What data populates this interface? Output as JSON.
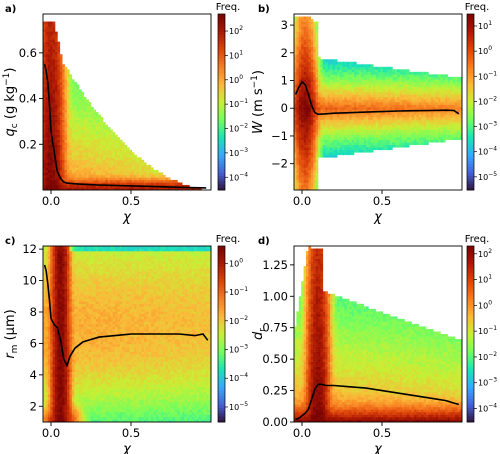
{
  "chart_data": [
    {
      "panel": "a)",
      "type": "heatmap",
      "xlabel": "χ",
      "ylabel": "q_c (g kg⁻¹)",
      "ylabel_parts": {
        "sym": "q",
        "sub": "c",
        "unit": "(g kg",
        "exp": "−1",
        "close": ")"
      },
      "xlim": [
        -0.05,
        1.0
      ],
      "ylim": [
        0.0,
        0.77
      ],
      "xticks": [
        0.0,
        0.5
      ],
      "xtick_labels": [
        "0.0",
        "0.5"
      ],
      "yticks": [
        0.2,
        0.4,
        0.6
      ],
      "ytick_labels": [
        "0.2",
        "0.4",
        "0.6"
      ],
      "colorbar_title": "Freq.",
      "colorbar_scale": "log",
      "colorbar_range": [
        3e-05,
        500
      ],
      "colorbar_ticks": [
        {
          "m": "10",
          "e": "2"
        },
        {
          "m": "10",
          "e": "1"
        },
        {
          "m": "10",
          "e": "0"
        },
        {
          "m": "10",
          "e": "−1"
        },
        {
          "m": "10",
          "e": "−2"
        },
        {
          "m": "10",
          "e": "−3"
        },
        {
          "m": "10",
          "e": "−4"
        }
      ],
      "colorbar_tick_values": [
        2,
        1,
        0,
        -1,
        -2,
        -3,
        -4
      ],
      "mean_curve": {
        "x": [
          -0.04,
          -0.03,
          -0.02,
          -0.01,
          0.0,
          0.01,
          0.02,
          0.03,
          0.04,
          0.06,
          0.08,
          0.1,
          0.15,
          0.2,
          0.3,
          0.4,
          0.5,
          0.6,
          0.7,
          0.8,
          0.9,
          0.97
        ],
        "y": [
          0.55,
          0.52,
          0.47,
          0.38,
          0.26,
          0.21,
          0.17,
          0.12,
          0.08,
          0.05,
          0.035,
          0.03,
          0.027,
          0.025,
          0.022,
          0.02,
          0.018,
          0.016,
          0.014,
          0.012,
          0.01,
          0.009
        ]
      }
    },
    {
      "panel": "b)",
      "type": "heatmap",
      "xlabel": "χ",
      "ylabel": "W (m s⁻¹)",
      "ylabel_parts": {
        "sym": "W",
        "sub": "",
        "unit": "(m s",
        "exp": "−1",
        "close": ")"
      },
      "xlim": [
        -0.05,
        1.0
      ],
      "ylim": [
        -2.95,
        3.4
      ],
      "xticks": [
        0.0,
        0.5
      ],
      "xtick_labels": [
        "0.0",
        "0.5"
      ],
      "yticks": [
        -2,
        -1,
        0,
        1,
        2,
        3
      ],
      "ytick_labels": [
        "−2",
        "−1",
        "0",
        "1",
        "2",
        "3"
      ],
      "colorbar_title": "Freq.",
      "colorbar_scale": "log",
      "colorbar_range": [
        3e-06,
        30
      ],
      "colorbar_ticks": [
        {
          "m": "10",
          "e": "1"
        },
        {
          "m": "10",
          "e": "0"
        },
        {
          "m": "10",
          "e": "−1"
        },
        {
          "m": "10",
          "e": "−2"
        },
        {
          "m": "10",
          "e": "−3"
        },
        {
          "m": "10",
          "e": "−4"
        },
        {
          "m": "10",
          "e": "−5"
        }
      ],
      "colorbar_tick_values": [
        1,
        0,
        -1,
        -2,
        -3,
        -4,
        -5
      ],
      "mean_curve": {
        "x": [
          -0.04,
          -0.02,
          0.0,
          0.02,
          0.04,
          0.06,
          0.08,
          0.1,
          0.15,
          0.2,
          0.3,
          0.4,
          0.5,
          0.6,
          0.7,
          0.8,
          0.9,
          0.95,
          0.98
        ],
        "y": [
          0.5,
          0.75,
          0.95,
          0.85,
          0.5,
          0.1,
          -0.15,
          -0.22,
          -0.2,
          -0.18,
          -0.16,
          -0.14,
          -0.12,
          -0.1,
          -0.09,
          -0.08,
          -0.07,
          -0.08,
          -0.2
        ]
      }
    },
    {
      "panel": "c)",
      "type": "heatmap",
      "xlabel": "χ",
      "ylabel": "r_m (µm)",
      "ylabel_parts": {
        "sym": "r",
        "sub": "m",
        "unit": "(µm)",
        "exp": "",
        "close": ""
      },
      "xlim": [
        -0.05,
        1.0
      ],
      "ylim": [
        1.0,
        12.2
      ],
      "xticks": [
        0.0,
        0.5
      ],
      "xtick_labels": [
        "0.0",
        "0.5"
      ],
      "yticks": [
        2,
        4,
        6,
        8,
        10,
        12
      ],
      "ytick_labels": [
        "2",
        "4",
        "6",
        "8",
        "10",
        "12"
      ],
      "colorbar_title": "Freq.",
      "colorbar_scale": "log",
      "colorbar_range": [
        3e-06,
        4
      ],
      "colorbar_ticks": [
        {
          "m": "10",
          "e": "0"
        },
        {
          "m": "10",
          "e": "−1"
        },
        {
          "m": "10",
          "e": "−2"
        },
        {
          "m": "10",
          "e": "−3"
        },
        {
          "m": "10",
          "e": "−4"
        },
        {
          "m": "10",
          "e": "−5"
        }
      ],
      "colorbar_tick_values": [
        0,
        -1,
        -2,
        -3,
        -4,
        -5
      ],
      "mean_curve": {
        "x": [
          -0.04,
          -0.03,
          -0.02,
          -0.01,
          0.0,
          0.02,
          0.04,
          0.06,
          0.08,
          0.1,
          0.12,
          0.15,
          0.2,
          0.3,
          0.4,
          0.5,
          0.6,
          0.7,
          0.8,
          0.9,
          0.95,
          0.98
        ],
        "y": [
          11.0,
          10.6,
          9.8,
          8.8,
          7.6,
          7.2,
          7.0,
          6.2,
          5.0,
          4.6,
          5.2,
          5.7,
          6.1,
          6.4,
          6.5,
          6.6,
          6.6,
          6.6,
          6.6,
          6.5,
          6.6,
          6.2
        ]
      }
    },
    {
      "panel": "d)",
      "type": "heatmap",
      "xlabel": "χ",
      "ylabel": "d_r",
      "ylabel_parts": {
        "sym": "d",
        "sub": "r",
        "unit": "",
        "exp": "",
        "close": ""
      },
      "xlim": [
        -0.05,
        1.0
      ],
      "ylim": [
        0.0,
        1.4
      ],
      "xticks": [
        0.0,
        0.5
      ],
      "xtick_labels": [
        "0.0",
        "0.5"
      ],
      "yticks": [
        0.0,
        0.25,
        0.5,
        0.75,
        1.0,
        1.25
      ],
      "ytick_labels": [
        "0.00",
        "0.25",
        "0.50",
        "0.75",
        "1.00",
        "1.25"
      ],
      "colorbar_title": "Freq.",
      "colorbar_scale": "log",
      "colorbar_range": [
        3e-05,
        200
      ],
      "colorbar_ticks": [
        {
          "m": "10",
          "e": "2"
        },
        {
          "m": "10",
          "e": "1"
        },
        {
          "m": "10",
          "e": "0"
        },
        {
          "m": "10",
          "e": "−1"
        },
        {
          "m": "10",
          "e": "−2"
        },
        {
          "m": "10",
          "e": "−3"
        },
        {
          "m": "10",
          "e": "−4"
        }
      ],
      "colorbar_tick_values": [
        2,
        1,
        0,
        -1,
        -2,
        -3,
        -4
      ],
      "mean_curve": {
        "x": [
          -0.04,
          -0.02,
          0.0,
          0.02,
          0.04,
          0.06,
          0.08,
          0.1,
          0.12,
          0.15,
          0.2,
          0.3,
          0.4,
          0.5,
          0.6,
          0.7,
          0.8,
          0.9,
          0.95,
          0.98
        ],
        "y": [
          0.02,
          0.03,
          0.05,
          0.07,
          0.1,
          0.18,
          0.26,
          0.3,
          0.3,
          0.29,
          0.29,
          0.28,
          0.27,
          0.25,
          0.23,
          0.21,
          0.19,
          0.17,
          0.15,
          0.14
        ]
      }
    }
  ]
}
